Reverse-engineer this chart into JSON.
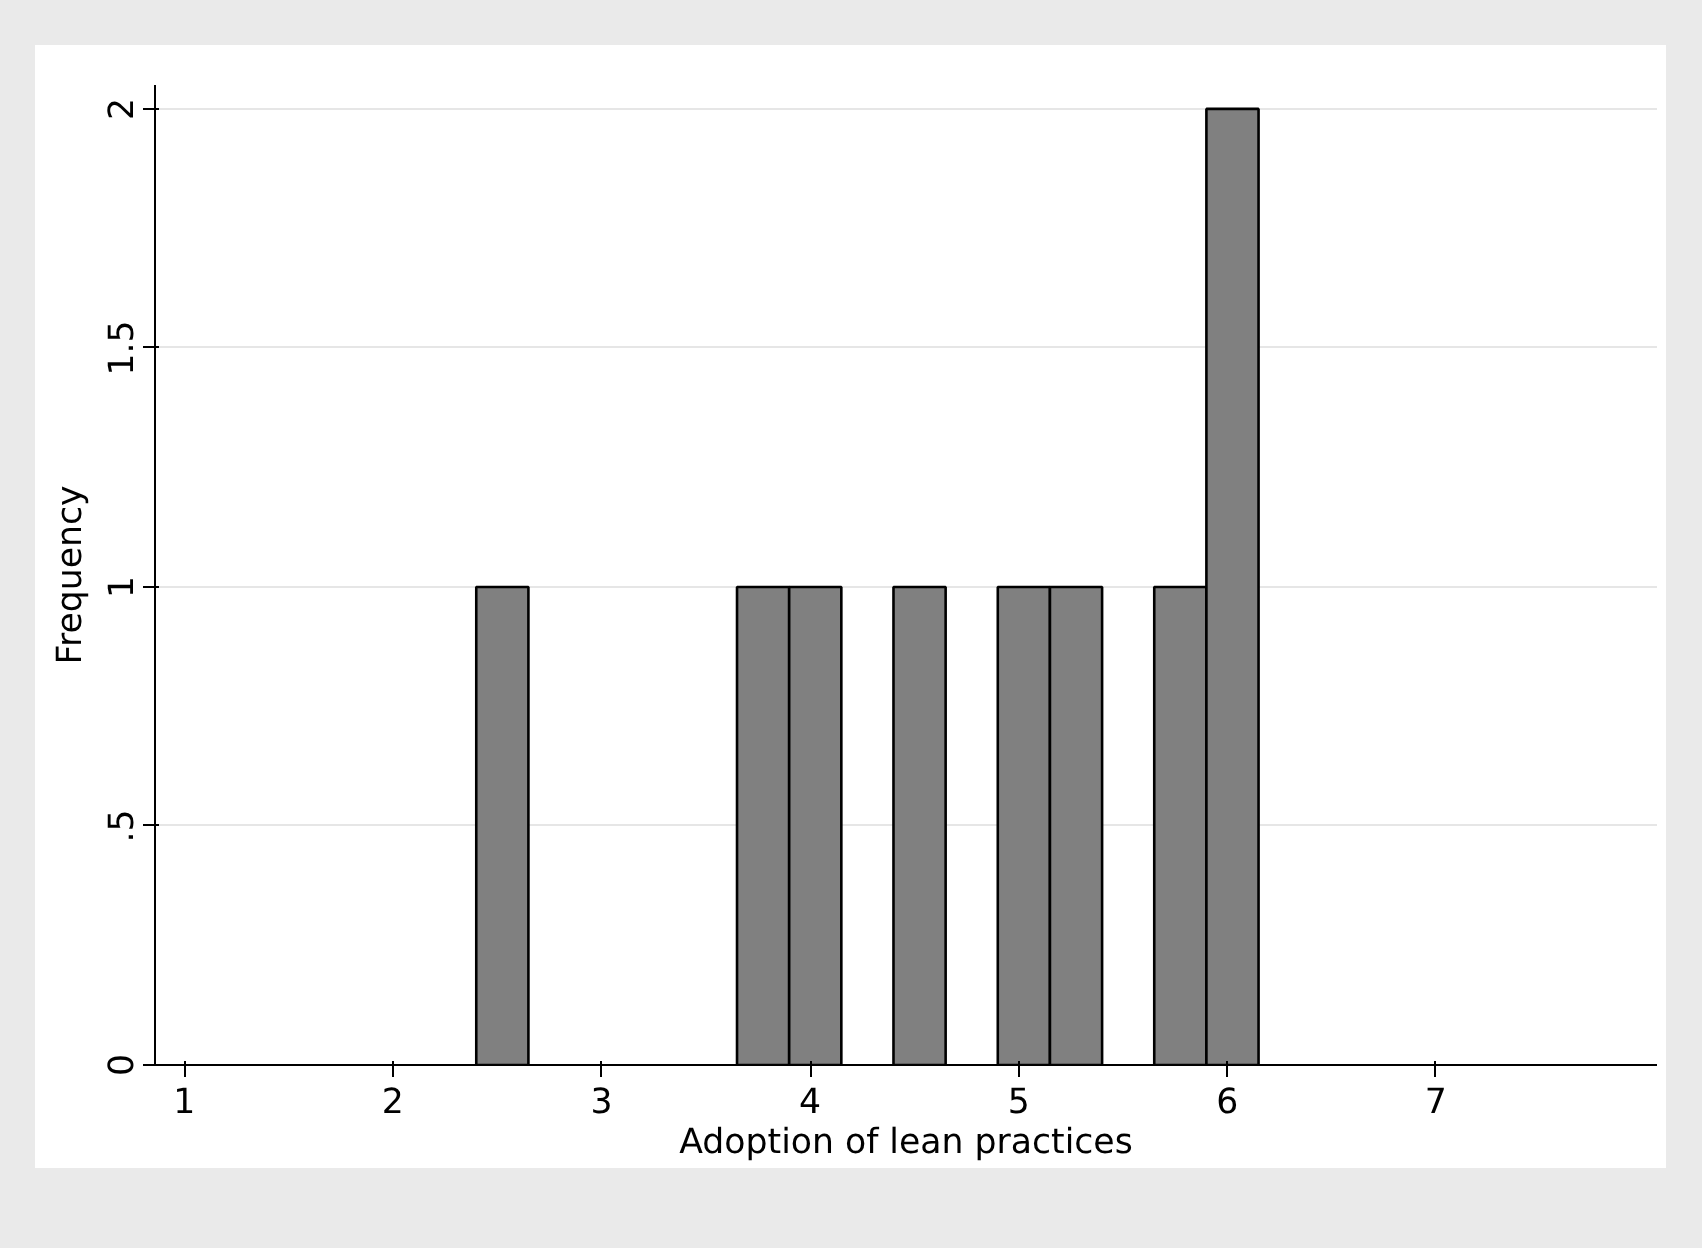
{
  "chart_data": {
    "type": "histogram",
    "xlabel": "Adoption of lean practices",
    "ylabel": "Frequency",
    "bins": [
      2.4,
      2.65,
      2.9,
      3.15,
      3.4,
      3.65,
      3.9,
      4.15,
      4.4,
      4.65,
      4.9,
      5.15,
      5.4,
      5.65,
      5.9,
      6.15
    ],
    "values": [
      1,
      0,
      0,
      0,
      0,
      1,
      1,
      0,
      1,
      0,
      1,
      1,
      0,
      1,
      2
    ],
    "color": "#808080",
    "xlim": [
      0.86,
      8.06
    ],
    "xticks": [
      1,
      2,
      3,
      4,
      5,
      6,
      7
    ],
    "ylim": [
      0,
      2.05
    ],
    "yticks": [
      0,
      {
        "value": 0.5,
        "label": ".5"
      },
      1,
      1.5,
      2
    ],
    "grid": "y"
  }
}
